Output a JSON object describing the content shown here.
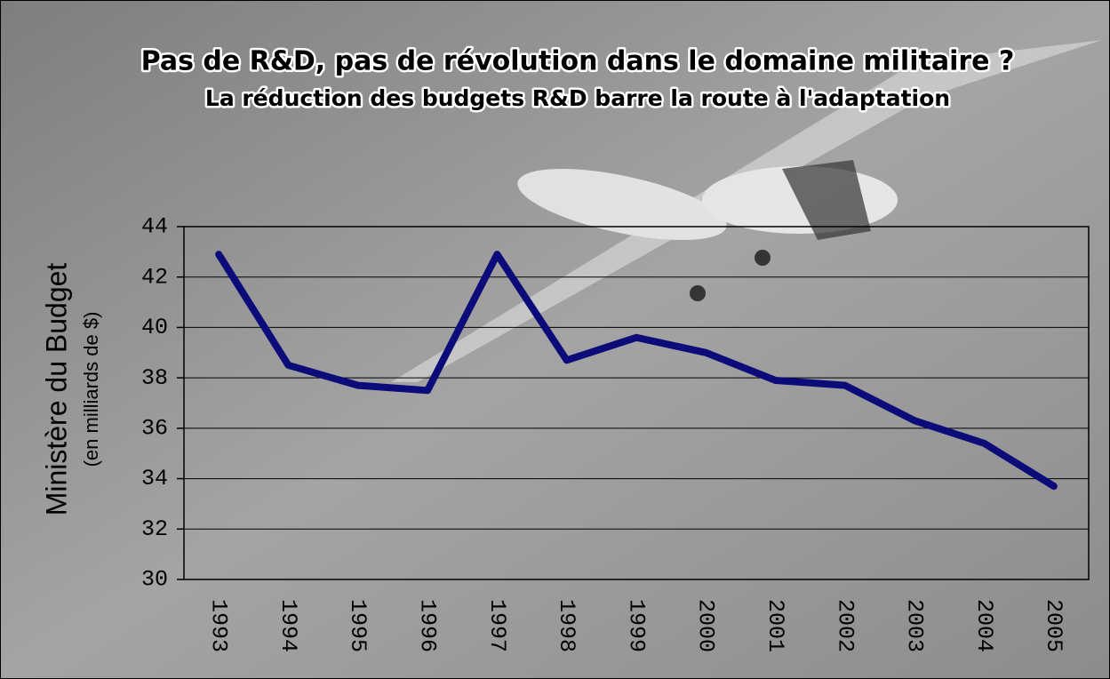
{
  "chart_data": {
    "type": "line",
    "title": "Pas de R&D, pas de révolution dans le domaine militaire ?",
    "subtitle": "La réduction des budgets R&D barre la route à l'adaptation",
    "ylabel": "Ministère du Budget",
    "ylabel_note": "(en milliards de $)",
    "categories": [
      "1993",
      "1994",
      "1995",
      "1996",
      "1997",
      "1998",
      "1999",
      "2000",
      "2001",
      "2002",
      "2003",
      "2004",
      "2005"
    ],
    "values": [
      42.9,
      38.5,
      37.7,
      37.5,
      42.9,
      38.7,
      39.6,
      39.0,
      37.9,
      37.7,
      36.3,
      35.4,
      33.7
    ],
    "color": "#0b0b7a",
    "ylim": [
      30,
      44
    ],
    "yticks": [
      30,
      32,
      34,
      36,
      38,
      40,
      42,
      44
    ],
    "grid": true
  }
}
